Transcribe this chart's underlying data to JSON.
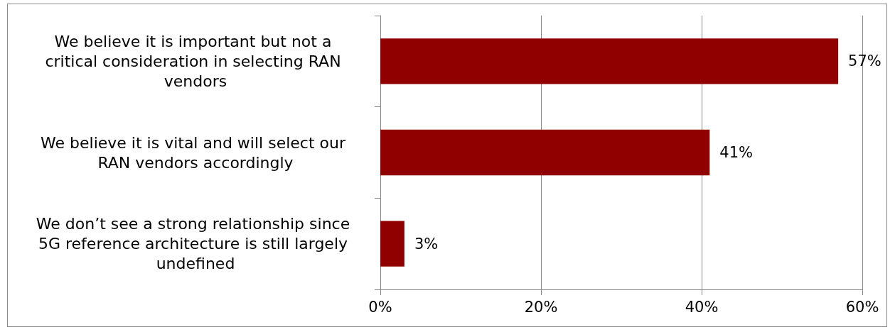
{
  "chart_data": {
    "type": "bar",
    "orientation": "horizontal",
    "categories": [
      "We believe it is important but not a critical consideration in selecting RAN vendors",
      "We believe it is vital and will select our RAN vendors accordingly",
      "We don’t see a strong relationship since 5G reference architecture is still largely undefined"
    ],
    "values": [
      57,
      41,
      3
    ],
    "color": "#900000",
    "value_labels": [
      "57%",
      "41%",
      "3%"
    ],
    "xlim": [
      0,
      60
    ],
    "xticks": [
      {
        "value": 0,
        "label": "0%"
      },
      {
        "value": 20,
        "label": "20%"
      },
      {
        "value": 40,
        "label": "40%"
      },
      {
        "value": 60,
        "label": "60%"
      }
    ],
    "grid": "x"
  }
}
